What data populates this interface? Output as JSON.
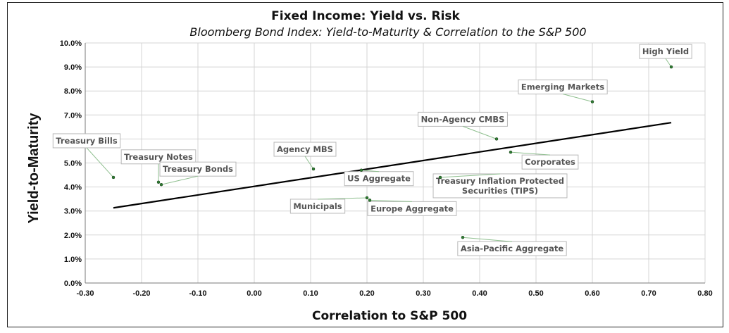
{
  "chart_data": {
    "type": "scatter",
    "title": "Fixed Income: Yield vs. Risk",
    "subtitle": "Bloomberg Bond Index: Yield-to-Maturity & Correlation to the S&P 500",
    "xlabel": "Correlation to S&P 500",
    "ylabel": "Yield-to-Maturity",
    "xlim": [
      -0.3,
      0.8
    ],
    "ylim": [
      0.0,
      10.0
    ],
    "x_ticks": [
      -0.3,
      -0.2,
      -0.1,
      0.0,
      0.1,
      0.2,
      0.3,
      0.4,
      0.5,
      0.6,
      0.7,
      0.8
    ],
    "x_tick_labels": [
      "-0.30",
      "-0.20",
      "-0.10",
      "0.00",
      "0.10",
      "0.20",
      "0.30",
      "0.40",
      "0.50",
      "0.60",
      "0.70",
      "0.80"
    ],
    "y_ticks": [
      0,
      1,
      2,
      3,
      4,
      5,
      6,
      7,
      8,
      9,
      10
    ],
    "y_tick_labels": [
      "0.0%",
      "1.0%",
      "2.0%",
      "3.0%",
      "4.0%",
      "5.0%",
      "6.0%",
      "7.0%",
      "8.0%",
      "9.0%",
      "10.0%"
    ],
    "grid": true,
    "legend": "none",
    "points": [
      {
        "label": "Treasury Bills",
        "x": -0.25,
        "y": 4.4
      },
      {
        "label": "Treasury Notes",
        "x": -0.17,
        "y": 4.2
      },
      {
        "label": "Treasury Bonds",
        "x": -0.165,
        "y": 4.1
      },
      {
        "label": "Agency MBS",
        "x": 0.105,
        "y": 4.75
      },
      {
        "label": "US Aggregate",
        "x": 0.19,
        "y": 4.7
      },
      {
        "label": "Municipals",
        "x": 0.2,
        "y": 3.55
      },
      {
        "label": "Europe Aggregate",
        "x": 0.205,
        "y": 3.45
      },
      {
        "label": "Non-Agency CMBS",
        "x": 0.43,
        "y": 6.0
      },
      {
        "label": "Corporates",
        "x": 0.455,
        "y": 5.45
      },
      {
        "label": "Treasury Inflation Protected Securities (TIPS)",
        "x": 0.33,
        "y": 4.4
      },
      {
        "label": "Asia-Pacific Aggregate",
        "x": 0.37,
        "y": 1.9
      },
      {
        "label": "Emerging Markets",
        "x": 0.6,
        "y": 7.55
      },
      {
        "label": "High Yield",
        "x": 0.74,
        "y": 9.0
      }
    ],
    "trendline": {
      "x": [
        -0.25,
        0.74
      ],
      "y": [
        3.13,
        6.68
      ]
    },
    "colors": {
      "points": "#2e7d32",
      "trendline": "#000000",
      "grid": "#d4d4d4"
    }
  }
}
